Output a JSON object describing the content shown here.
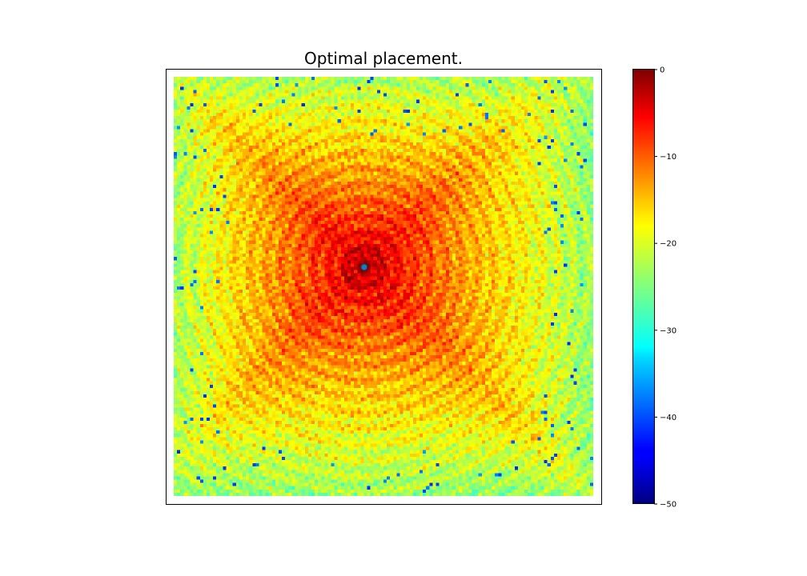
{
  "chart_data": {
    "type": "heatmap",
    "title": "Optimal placement.",
    "xlabel": "",
    "ylabel": "",
    "colormap": "jet",
    "axes_ticks_visible": false,
    "grid": false,
    "grid_size": [
      128,
      128
    ],
    "peak_value": 0,
    "peak_location": "center-left, above middle",
    "background_level_range": [
      -30,
      -18
    ],
    "minimum_spots_value": -42,
    "marker": {
      "shape": "circle",
      "color": "#1f77b4",
      "position": "at peak"
    },
    "colorbar": {
      "location": "right",
      "vmin": -50,
      "vmax": 0,
      "ticks": [
        {
          "value": 0,
          "label": "0"
        },
        {
          "value": -10,
          "label": "−10"
        },
        {
          "value": -20,
          "label": "−20"
        },
        {
          "value": -30,
          "label": "−30"
        },
        {
          "value": -40,
          "label": "−40"
        },
        {
          "value": -50,
          "label": "−50"
        }
      ]
    }
  }
}
